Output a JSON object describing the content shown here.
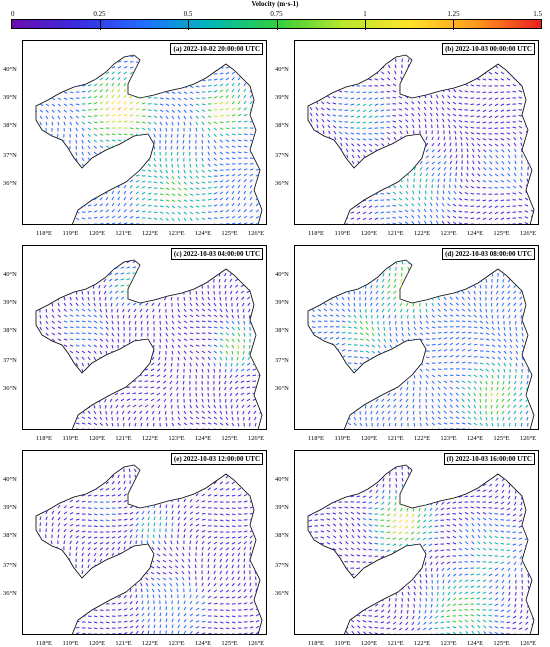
{
  "colorbar": {
    "title": "Velocity (m·s-1)",
    "ticks": [
      "0",
      "0.25",
      "0.5",
      "0.75",
      "1",
      "1.25",
      "1.5"
    ],
    "colors": [
      "#6a0dad",
      "#3a2be0",
      "#1f6fff",
      "#00b8b8",
      "#2fcf3a",
      "#b7e62c",
      "#ffe32a",
      "#ff9a1f",
      "#e8201c"
    ]
  },
  "map": {
    "lat_labels": [
      "40°N",
      "39°N",
      "38°N",
      "37°N",
      "36°N"
    ],
    "lon_labels": [
      "118°E",
      "119°E",
      "120°E",
      "121°E",
      "122°E",
      "123°E",
      "124°E",
      "125°E",
      "126°E"
    ],
    "sea_color": "#fdf9f9",
    "land_color": "#ffffff"
  },
  "panels": [
    {
      "label": "(a) 2022-10-02 20:00:00 UTC",
      "pattern": "a"
    },
    {
      "label": "(b) 2022-10-03 00:00:00 UTC",
      "pattern": "b"
    },
    {
      "label": "(c) 2022-10-03 04:00:00 UTC",
      "pattern": "c"
    },
    {
      "label": "(d) 2022-10-03 08:00:00 UTC",
      "pattern": "d"
    },
    {
      "label": "(e) 2022-10-03 12:00:00 UTC",
      "pattern": "e"
    },
    {
      "label": "(f) 2022-10-03 16:00:00 UTC",
      "pattern": "f"
    }
  ]
}
